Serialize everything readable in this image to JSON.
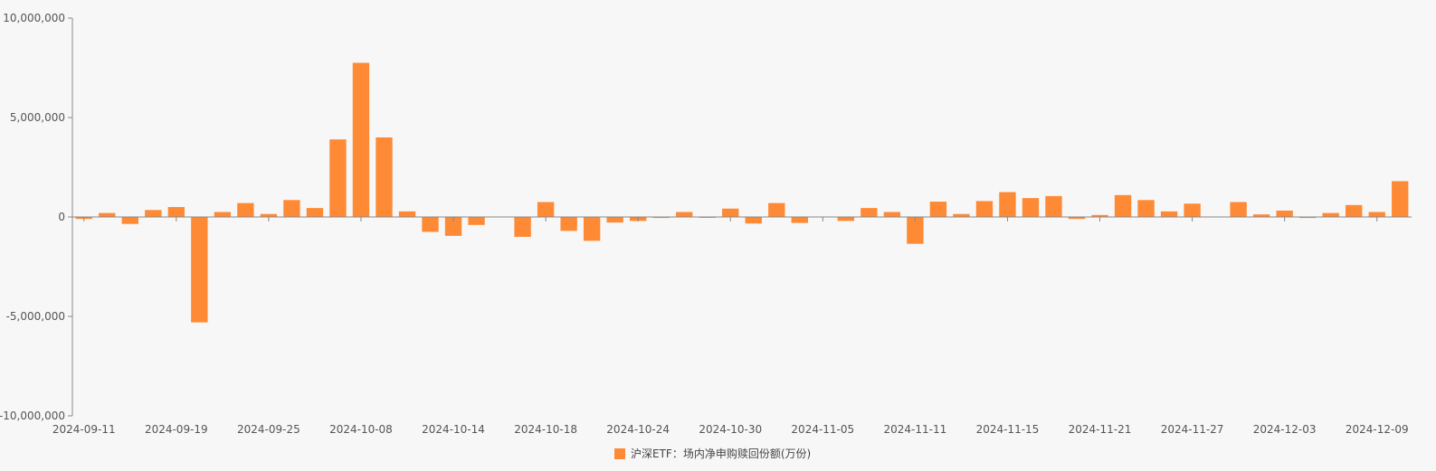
{
  "chart_data": {
    "type": "bar",
    "title": "",
    "xlabel": "",
    "ylabel": "",
    "ylim": [
      -10000000,
      10000000
    ],
    "y_ticks": [
      10000000,
      5000000,
      0,
      -5000000,
      -10000000
    ],
    "y_tick_labels": [
      "10,000,000",
      "5,000,000",
      "0",
      "-5,000,000",
      "-10,000,000"
    ],
    "x_tick_labels": [
      "2024-09-11",
      "2024-09-19",
      "2024-09-25",
      "2024-10-08",
      "2024-10-14",
      "2024-10-18",
      "2024-10-24",
      "2024-10-30",
      "2024-11-05",
      "2024-11-11",
      "2024-11-15",
      "2024-11-21",
      "2024-11-27",
      "2024-12-03",
      "2024-12-09"
    ],
    "x_tick_every": 4,
    "grid": false,
    "legend_position": "bottom-center",
    "color": "#ff8a35",
    "series": [
      {
        "name": "沪深ETF：场内净申购赎回份额(万份)",
        "values": [
          -100000,
          200000,
          -350000,
          350000,
          500000,
          -5300000,
          250000,
          700000,
          150000,
          850000,
          450000,
          3900000,
          7750000,
          4000000,
          280000,
          -750000,
          -950000,
          -400000,
          0,
          -1000000,
          750000,
          -700000,
          -1200000,
          -280000,
          -200000,
          -50000,
          250000,
          -30000,
          420000,
          -330000,
          700000,
          -300000,
          0,
          -200000,
          450000,
          250000,
          -1350000,
          770000,
          150000,
          800000,
          1250000,
          950000,
          1050000,
          -100000,
          100000,
          1100000,
          850000,
          280000,
          670000,
          0,
          750000,
          130000,
          320000,
          -50000,
          200000,
          600000,
          250000,
          1800000
        ]
      }
    ]
  }
}
